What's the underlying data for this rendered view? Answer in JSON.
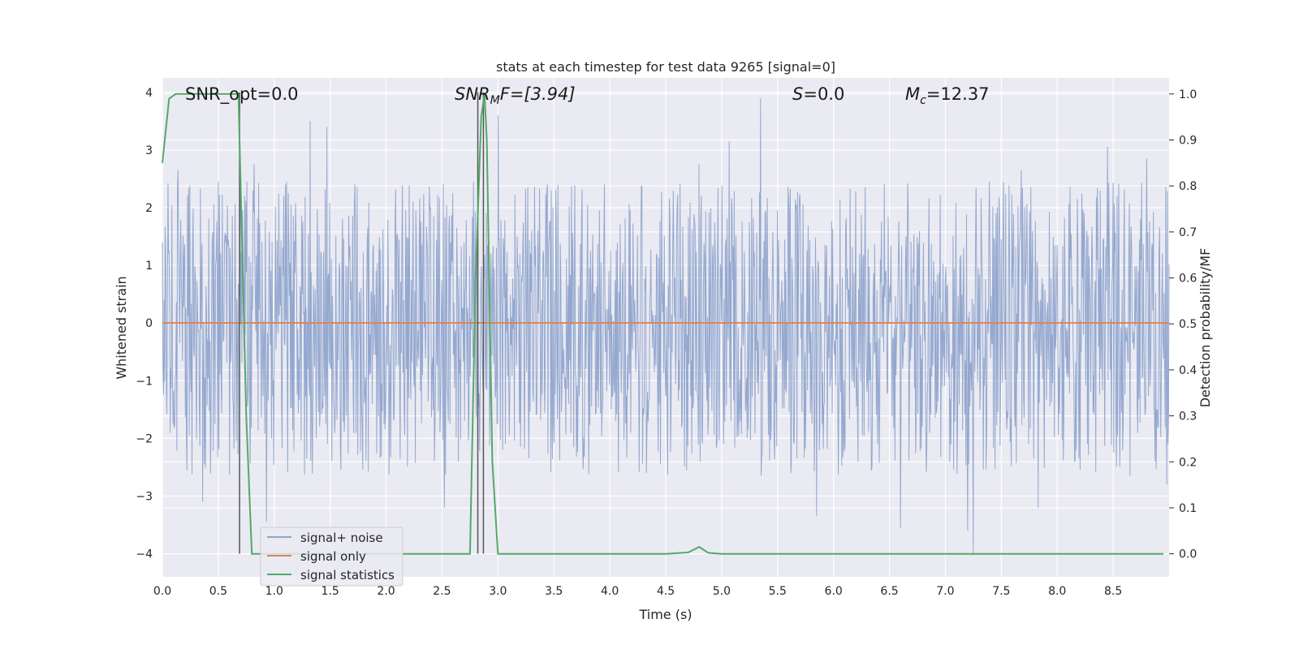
{
  "chart_data": {
    "type": "line",
    "title": "stats at each timestep for test data 9265 [signal=0]",
    "xlabel": "Time (s)",
    "ylabel_left": "Whitened strain",
    "ylabel_right": "Detection probability/MF",
    "xlim": [
      0,
      9.0
    ],
    "ylim_left": [
      -4.4,
      4.25
    ],
    "ylim_right": [
      -0.05,
      1.035
    ],
    "x_ticks": [
      "0.0",
      "0.5",
      "1.0",
      "1.5",
      "2.0",
      "2.5",
      "3.0",
      "3.5",
      "4.0",
      "4.5",
      "5.0",
      "5.5",
      "6.0",
      "6.5",
      "7.0",
      "7.5",
      "8.0",
      "8.5"
    ],
    "y_left_ticks": [
      "4",
      "3",
      "2",
      "1",
      "0",
      "−1",
      "−2",
      "−3",
      "−4"
    ],
    "y_right_ticks": [
      "1.0",
      "0.9",
      "0.8",
      "0.7",
      "0.6",
      "0.5",
      "0.4",
      "0.3",
      "0.2",
      "0.1",
      "0.0"
    ],
    "grid": true,
    "legend_position": "lower-left",
    "annotations": [
      {
        "text": "SNR_opt=0.0"
      },
      {
        "pre": "SNR",
        "sub": "M",
        "post": "F=[3.94]"
      },
      {
        "pre": "S",
        "post": "=0.0"
      },
      {
        "pre": "M",
        "sub": "c",
        "post": "=12.37"
      }
    ],
    "series": [
      {
        "name": "signal+ noise",
        "axis": "left",
        "color": "#8fa4cc",
        "description": "dense whitened noise, approx uniform in [-1.65, 1.55] with spikes to about +3.9 and -4.0",
        "envelope": [
          -1.65,
          1.55
        ],
        "spikes": [
          {
            "x": 0.14,
            "y": 2.65
          },
          {
            "x": 0.5,
            "y": 2.45
          },
          {
            "x": 0.82,
            "y": 2.75
          },
          {
            "x": 1.32,
            "y": 3.5
          },
          {
            "x": 1.47,
            "y": 3.4
          },
          {
            "x": 2.78,
            "y": 2.45
          },
          {
            "x": 3.0,
            "y": 3.6
          },
          {
            "x": 3.95,
            "y": 2.4
          },
          {
            "x": 4.8,
            "y": 2.75
          },
          {
            "x": 5.07,
            "y": 3.15
          },
          {
            "x": 5.35,
            "y": 3.9
          },
          {
            "x": 6.6,
            "y": 2.6
          },
          {
            "x": 7.68,
            "y": 2.65
          },
          {
            "x": 8.45,
            "y": 3.05
          },
          {
            "x": 8.8,
            "y": 2.85
          },
          {
            "x": 0.36,
            "y": -3.1
          },
          {
            "x": 0.93,
            "y": -3.45
          },
          {
            "x": 2.52,
            "y": -3.2
          },
          {
            "x": 5.85,
            "y": -3.35
          },
          {
            "x": 6.6,
            "y": -3.55
          },
          {
            "x": 7.2,
            "y": -3.6
          },
          {
            "x": 7.25,
            "y": -4.0
          },
          {
            "x": 7.83,
            "y": -3.2
          },
          {
            "x": 8.98,
            "y": -2.8
          }
        ]
      },
      {
        "name": "signal only",
        "axis": "left",
        "color": "#dd8452",
        "x": [
          0,
          9.0
        ],
        "y": [
          0,
          0
        ]
      },
      {
        "name": "signal statistics",
        "axis": "right",
        "color": "#55a868",
        "x": [
          0.0,
          0.06,
          0.12,
          0.2,
          0.3,
          0.4,
          0.5,
          0.6,
          0.68,
          0.7,
          0.75,
          0.8,
          1.0,
          2.0,
          2.7,
          2.75,
          2.8,
          2.85,
          2.88,
          2.9,
          2.95,
          3.0,
          3.5,
          4.0,
          4.5,
          4.7,
          4.8,
          4.88,
          5.0,
          6.0,
          7.0,
          8.0,
          8.95
        ],
        "y": [
          0.85,
          0.99,
          1.0,
          1.0,
          1.0,
          1.0,
          1.0,
          1.0,
          1.0,
          0.8,
          0.3,
          0.0,
          0.0,
          0.0,
          0.0,
          0.0,
          0.6,
          0.95,
          1.0,
          0.9,
          0.2,
          0.0,
          0.0,
          0.0,
          0.0,
          0.003,
          0.015,
          0.002,
          0.0,
          0.0,
          0.0,
          0.0,
          0.0
        ]
      }
    ],
    "vertical_lines": [
      {
        "x": 0.69,
        "axis": "left",
        "y_bottom": -4.0,
        "y_top": 4.0,
        "color": "#555555"
      },
      {
        "x": 2.82,
        "axis": "left",
        "y_bottom": -4.0,
        "y_top": 4.0,
        "color": "#555555"
      },
      {
        "x": 2.87,
        "axis": "left",
        "y_bottom": -4.0,
        "y_top": 4.0,
        "color": "#555555"
      }
    ]
  }
}
